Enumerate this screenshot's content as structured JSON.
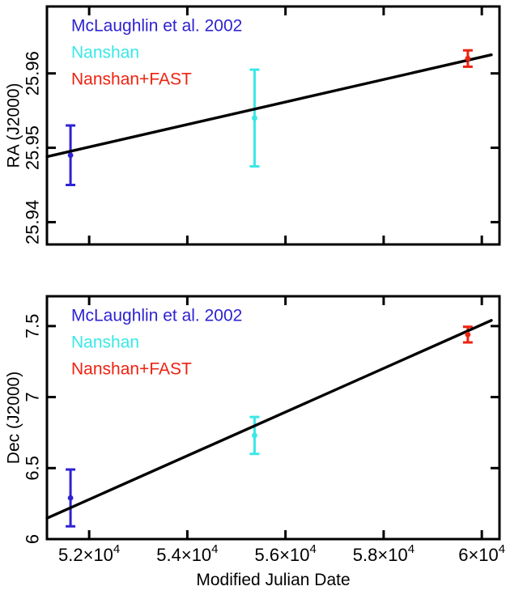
{
  "figure": {
    "background": "#ffffff",
    "frame_color": "#000000",
    "xlabel": "Modified Julian Date"
  },
  "chart_data": [
    {
      "type": "scatter",
      "title": "",
      "xlabel": "",
      "ylabel": "RA (J2000)",
      "grid": false,
      "xlim": [
        51140,
        60360
      ],
      "ylim": [
        25.937,
        25.969
      ],
      "show_x_tick_labels": false,
      "xticks": [
        {
          "value": 52000,
          "label": "5.2×10⁴",
          "mantissa": "5.2×10",
          "sup": "4"
        },
        {
          "value": 54000,
          "label": "5.4×10⁴",
          "mantissa": "5.4×10",
          "sup": "4"
        },
        {
          "value": 56000,
          "label": "5.6×10⁴",
          "mantissa": "5.6×10",
          "sup": "4"
        },
        {
          "value": 58000,
          "label": "5.8×10⁴",
          "mantissa": "5.8×10",
          "sup": "4"
        },
        {
          "value": 60000,
          "label": "6×10⁴",
          "mantissa": "6×10",
          "sup": "4"
        }
      ],
      "yticks": [
        {
          "value": 25.94,
          "label": "25.94"
        },
        {
          "value": 25.95,
          "label": "25.95"
        },
        {
          "value": 25.96,
          "label": "25.96"
        }
      ],
      "legend": {
        "position": "top-left",
        "entries": [
          "McLaughlin et al. 2002",
          "Nanshan",
          "Nanshan+FAST"
        ]
      },
      "series": [
        {
          "name": "McLaughlin et al. 2002",
          "color": "#2f22d2",
          "points": [
            {
              "x": 51620,
              "y": 25.949,
              "yerr": 0.004
            }
          ]
        },
        {
          "name": "Nanshan",
          "color": "#3be7e7",
          "points": [
            {
              "x": 55370,
              "y": 25.954,
              "yerr": 0.0065
            }
          ]
        },
        {
          "name": "Nanshan+FAST",
          "color": "#ee2211",
          "points": [
            {
              "x": 59715,
              "y": 25.962,
              "yerr": 0.0011
            }
          ]
        }
      ],
      "fit_line": {
        "color": "#000000",
        "x": [
          51140,
          60195
        ],
        "y": [
          25.9488,
          25.9625
        ]
      }
    },
    {
      "type": "scatter",
      "title": "",
      "xlabel": "Modified Julian Date",
      "ylabel": "Dec (J2000)",
      "grid": false,
      "xlim": [
        51140,
        60360
      ],
      "ylim": [
        6.0,
        7.71
      ],
      "show_x_tick_labels": true,
      "xticks": [
        {
          "value": 52000,
          "label": "5.2×10⁴",
          "mantissa": "5.2×10",
          "sup": "4"
        },
        {
          "value": 54000,
          "label": "5.4×10⁴",
          "mantissa": "5.4×10",
          "sup": "4"
        },
        {
          "value": 56000,
          "label": "5.6×10⁴",
          "mantissa": "5.6×10",
          "sup": "4"
        },
        {
          "value": 58000,
          "label": "5.8×10⁴",
          "mantissa": "5.8×10",
          "sup": "4"
        },
        {
          "value": 60000,
          "label": "6×10⁴",
          "mantissa": "6×10",
          "sup": "4"
        }
      ],
      "yticks": [
        {
          "value": 6.0,
          "label": "6"
        },
        {
          "value": 6.5,
          "label": "6.5"
        },
        {
          "value": 7.0,
          "label": "7"
        },
        {
          "value": 7.5,
          "label": "7.5"
        }
      ],
      "legend": {
        "position": "top-left",
        "entries": [
          "McLaughlin et al. 2002",
          "Nanshan",
          "Nanshan+FAST"
        ]
      },
      "series": [
        {
          "name": "McLaughlin et al. 2002",
          "color": "#2f22d2",
          "points": [
            {
              "x": 51620,
              "y": 6.29,
              "yerr": 0.2
            }
          ]
        },
        {
          "name": "Nanshan",
          "color": "#3be7e7",
          "points": [
            {
              "x": 55370,
              "y": 6.73,
              "yerr": 0.13
            }
          ]
        },
        {
          "name": "Nanshan+FAST",
          "color": "#ee2211",
          "points": [
            {
              "x": 59715,
              "y": 7.44,
              "yerr": 0.055
            }
          ]
        }
      ],
      "fit_line": {
        "color": "#000000",
        "x": [
          51140,
          60195
        ],
        "y": [
          6.147,
          7.54
        ]
      }
    }
  ]
}
